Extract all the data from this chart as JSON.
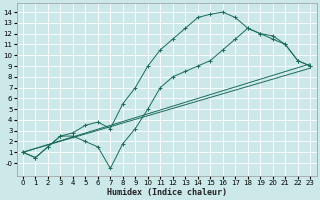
{
  "xlabel": "Humidex (Indice chaleur)",
  "bg_color": "#cce8e8",
  "grid_color": "#ffffff",
  "line_color": "#1a6b5a",
  "xlim": [
    -0.5,
    23.5
  ],
  "ylim": [
    -1.2,
    14.8
  ],
  "xticks": [
    0,
    1,
    2,
    3,
    4,
    5,
    6,
    7,
    8,
    9,
    10,
    11,
    12,
    13,
    14,
    15,
    16,
    17,
    18,
    19,
    20,
    21,
    22,
    23
  ],
  "yticks": [
    0,
    1,
    2,
    3,
    4,
    5,
    6,
    7,
    8,
    9,
    10,
    11,
    12,
    13,
    14
  ],
  "zigzag_x": [
    0,
    1,
    2,
    3,
    4,
    5,
    6,
    7,
    8,
    9,
    10,
    11,
    12,
    13,
    14,
    15,
    16,
    17,
    18,
    19,
    20,
    21,
    22,
    23
  ],
  "zigzag_y": [
    1.0,
    0.5,
    1.5,
    2.5,
    2.5,
    2.0,
    1.5,
    -0.5,
    1.8,
    3.2,
    5.0,
    7.0,
    8.0,
    8.5,
    9.0,
    9.5,
    10.5,
    11.5,
    12.5,
    12.0,
    11.5,
    11.0,
    9.5,
    9.0
  ],
  "upper_x": [
    0,
    1,
    2,
    3,
    4,
    5,
    6,
    7,
    8,
    9,
    10,
    11,
    12,
    13,
    14,
    15,
    16,
    17,
    18,
    19,
    20,
    21,
    22,
    23
  ],
  "upper_y": [
    1.0,
    0.5,
    1.5,
    2.5,
    2.8,
    3.5,
    3.8,
    3.2,
    5.5,
    7.0,
    9.0,
    10.5,
    11.5,
    12.5,
    13.5,
    13.8,
    14.0,
    13.5,
    12.5,
    12.0,
    11.8,
    11.0,
    9.5,
    9.0
  ],
  "line1_x": [
    0,
    23
  ],
  "line1_y": [
    1.0,
    8.8
  ],
  "line2_x": [
    0,
    23
  ],
  "line2_y": [
    1.0,
    9.2
  ]
}
